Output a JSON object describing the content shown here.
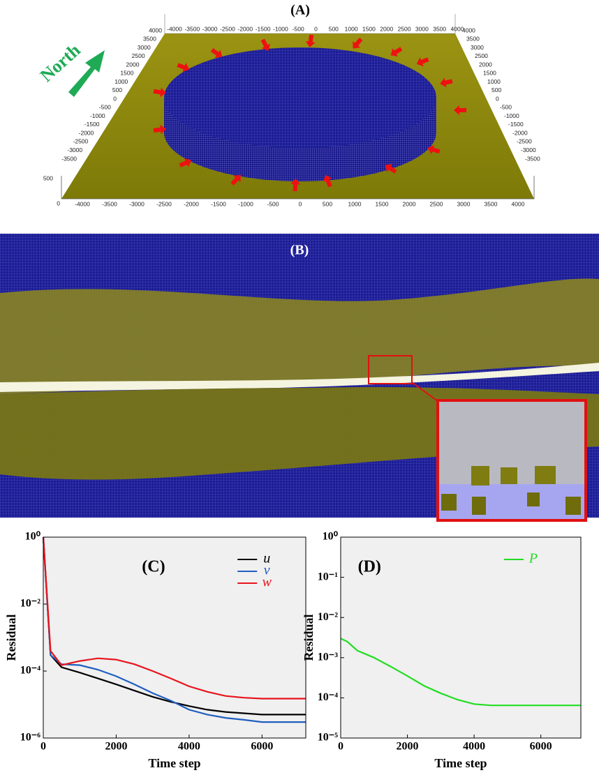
{
  "panel_a": {
    "label": "(A)",
    "north": "North",
    "top_ticks": [
      "-4000",
      "-3500",
      "-3000",
      "-2500",
      "-2000",
      "-1500",
      "-1000",
      "-500",
      "0",
      "500",
      "1000",
      "1500",
      "2000",
      "2500",
      "3000",
      "3500",
      "4000"
    ],
    "left_ticks": [
      "4000",
      "3500",
      "3000",
      "2500",
      "2000",
      "1500",
      "1000",
      "500",
      "0",
      "-500",
      "-1000",
      "-1500",
      "-2000",
      "-2500",
      "-3000",
      "-3500"
    ],
    "right_ticks": [
      "4000",
      "3500",
      "3000",
      "2500",
      "2000",
      "1500",
      "1000",
      "500",
      "0",
      "-500",
      "-1000",
      "-1500",
      "-2000",
      "-2500",
      "-3000",
      "-3500"
    ],
    "bottom_ticks": [
      "-4000",
      "-3500",
      "-3000",
      "-2500",
      "-2000",
      "-1500",
      "-1000",
      "-500",
      "0",
      "500",
      "1000",
      "1500",
      "2000",
      "2500",
      "3000",
      "3500",
      "4000"
    ],
    "z_ticks": [
      "500",
      "0"
    ]
  },
  "panel_b": {
    "label": "(B)"
  },
  "chart_data": [
    {
      "type": "line",
      "title": "(C)",
      "x_label": "Time step",
      "y_label": "Residual",
      "log_y": true,
      "background": "#f0f0f0",
      "x": [
        0,
        200,
        500,
        1000,
        1500,
        2000,
        2500,
        3000,
        3500,
        4000,
        4500,
        5000,
        5500,
        6000,
        6500,
        7200
      ],
      "series": [
        {
          "name": "u",
          "color": "#000000",
          "values": [
            1,
            0.0003,
            0.00013,
            9e-05,
            6e-05,
            4e-05,
            2.6e-05,
            1.7e-05,
            1.2e-05,
            9e-06,
            7e-06,
            6e-06,
            5.5e-06,
            5e-06,
            5e-06,
            5e-06
          ]
        },
        {
          "name": "v",
          "color": "#1f5fbf",
          "values": [
            1,
            0.0003,
            0.00016,
            0.00015,
            0.00011,
            7e-05,
            4e-05,
            2.2e-05,
            1.3e-05,
            7e-06,
            5e-06,
            4e-06,
            3.5e-06,
            3e-06,
            3e-06,
            3e-06
          ]
        },
        {
          "name": "w",
          "color": "#e8141c",
          "values": [
            1,
            0.0004,
            0.00015,
            0.0002,
            0.00024,
            0.00022,
            0.00016,
            0.0001,
            6e-05,
            3.5e-05,
            2.4e-05,
            1.8e-05,
            1.6e-05,
            1.5e-05,
            1.5e-05,
            1.5e-05
          ]
        }
      ],
      "xlim": [
        0,
        7200
      ],
      "xticks": [
        0,
        2000,
        4000,
        6000
      ],
      "ylim": [
        1e-06,
        1
      ],
      "yticks": [
        {
          "value": 1,
          "label": "10⁰"
        },
        {
          "value": 0.01,
          "label": "10⁻²"
        },
        {
          "value": 0.0001,
          "label": "10⁻⁴"
        },
        {
          "value": 1e-06,
          "label": "10⁻⁶"
        }
      ]
    },
    {
      "type": "line",
      "title": "(D)",
      "x_label": "Time step",
      "y_label": "Residual",
      "log_y": true,
      "background": "#f0f0f0",
      "x": [
        0,
        200,
        500,
        1000,
        1500,
        2000,
        2500,
        3000,
        3500,
        4000,
        4500,
        5000,
        5500,
        6000,
        6500,
        7200
      ],
      "series": [
        {
          "name": "P",
          "color": "#22dd22",
          "values": [
            0.003,
            0.0025,
            0.0015,
            0.001,
            0.0006,
            0.00035,
            0.0002,
            0.00013,
            9e-05,
            7e-05,
            6.5e-05,
            6.5e-05,
            6.5e-05,
            6.5e-05,
            6.5e-05,
            6.5e-05
          ]
        }
      ],
      "xlim": [
        0,
        7200
      ],
      "xticks": [
        0,
        2000,
        4000,
        6000
      ],
      "ylim": [
        1e-05,
        1
      ],
      "yticks": [
        {
          "value": 1,
          "label": "10⁰"
        },
        {
          "value": 0.1,
          "label": "10⁻¹"
        },
        {
          "value": 0.01,
          "label": "10⁻²"
        },
        {
          "value": 0.001,
          "label": "10⁻³"
        },
        {
          "value": 0.0001,
          "label": "10⁻⁴"
        },
        {
          "value": 1e-05,
          "label": "10⁻⁵"
        }
      ]
    }
  ]
}
